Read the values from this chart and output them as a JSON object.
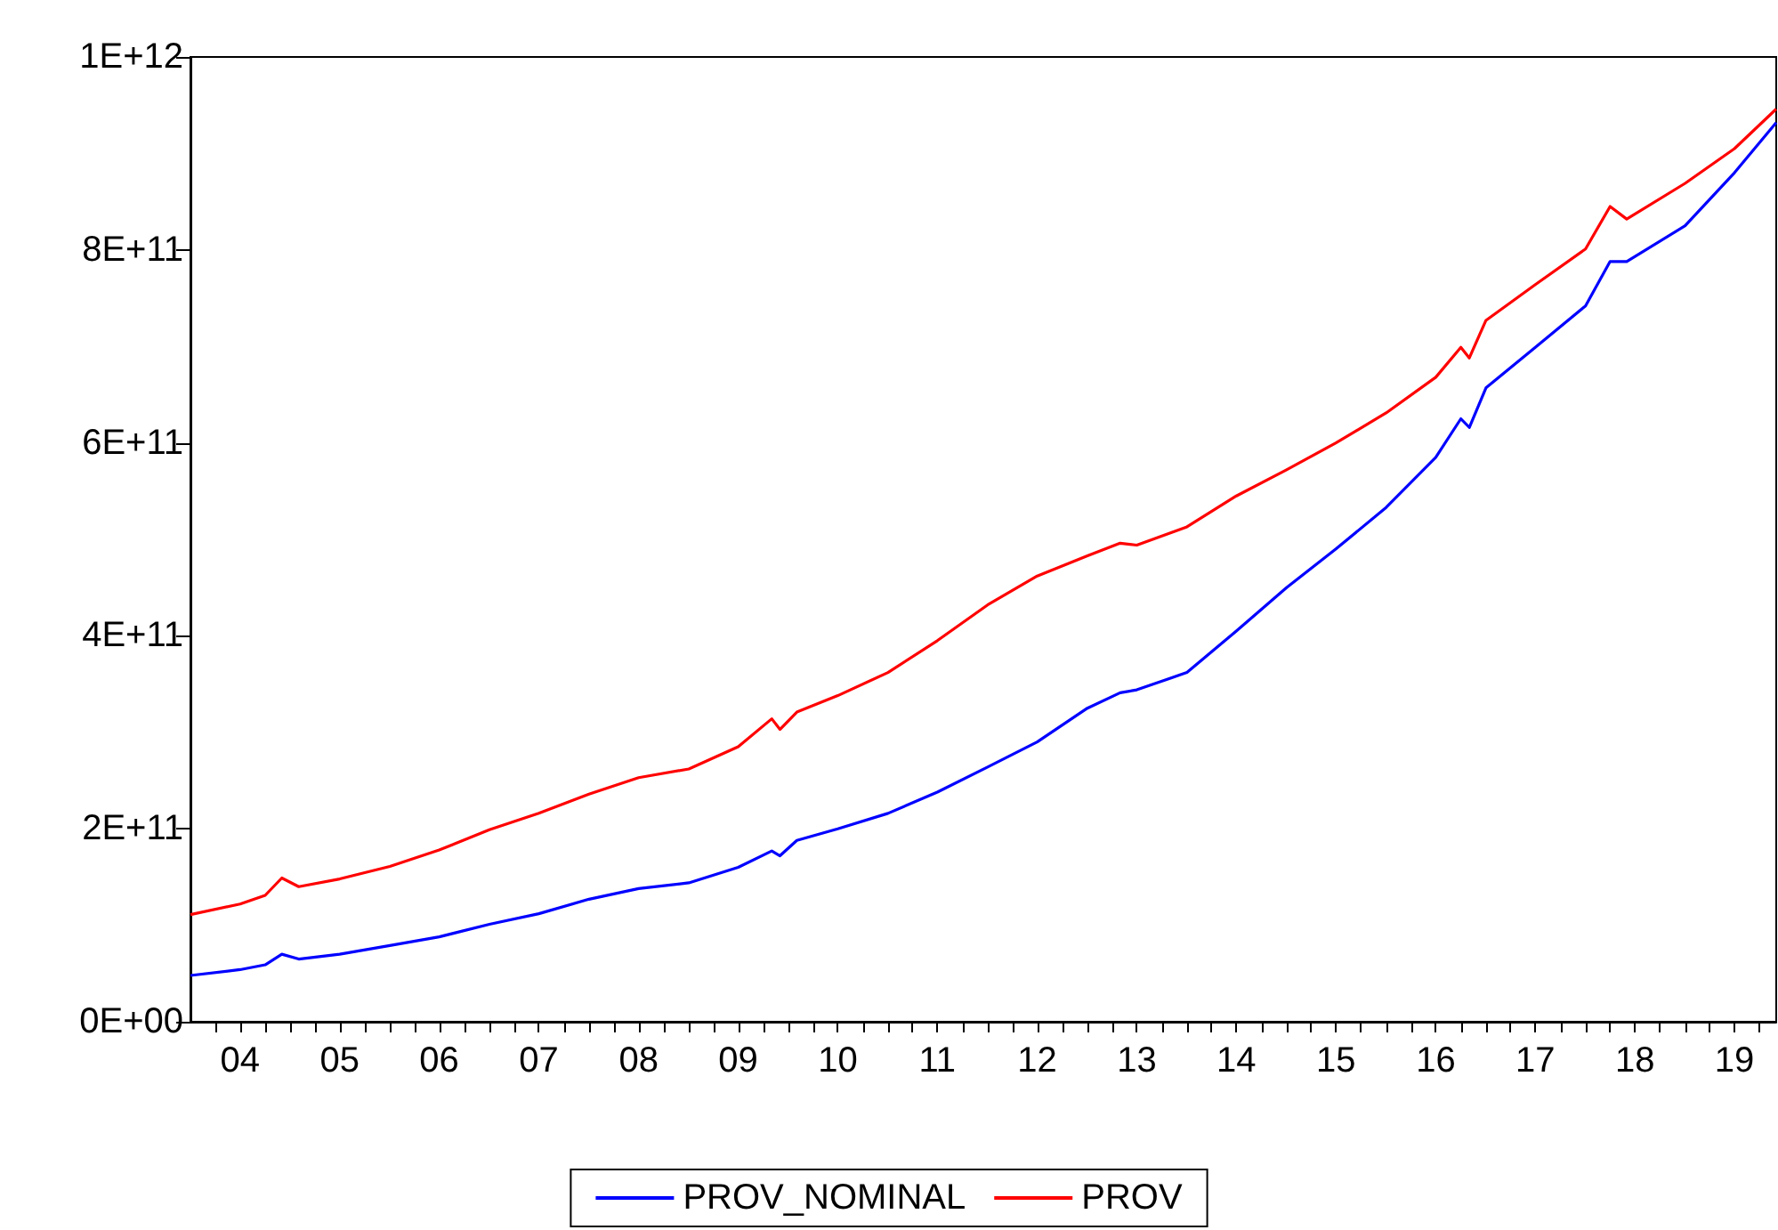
{
  "chart_data": {
    "type": "line",
    "x": [
      "2004-01",
      "2004-07",
      "2004-10",
      "2004-12",
      "2005-02",
      "2005-07",
      "2006-01",
      "2006-07",
      "2007-01",
      "2007-07",
      "2008-01",
      "2008-07",
      "2009-01",
      "2009-07",
      "2009-11",
      "2009-12",
      "2010-02",
      "2010-07",
      "2011-01",
      "2011-07",
      "2012-01",
      "2012-07",
      "2013-01",
      "2013-05",
      "2013-07",
      "2014-01",
      "2014-07",
      "2015-01",
      "2015-07",
      "2016-01",
      "2016-07",
      "2016-10",
      "2016-11",
      "2017-01",
      "2017-07",
      "2018-01",
      "2018-04",
      "2018-06",
      "2019-01",
      "2019-07",
      "2019-12"
    ],
    "series": [
      {
        "name": "PROV_NOMINAL",
        "color": "#0000ff",
        "values": [
          48000000000,
          54000000000,
          59000000000,
          70000000000,
          65000000000,
          70000000000,
          79000000000,
          88000000000,
          101000000000,
          112000000000,
          127000000000,
          138000000000,
          144000000000,
          160000000000,
          177000000000,
          172000000000,
          188000000000,
          200000000000,
          216000000000,
          238000000000,
          264000000000,
          290000000000,
          325000000000,
          341000000000,
          344000000000,
          362000000000,
          405000000000,
          450000000000,
          490000000000,
          533000000000,
          585000000000,
          625000000000,
          616000000000,
          657000000000,
          699000000000,
          742000000000,
          788000000000,
          788000000000,
          825000000000,
          880000000000,
          932000000000
        ]
      },
      {
        "name": "PROV",
        "color": "#ff0000",
        "values": [
          111000000000,
          122000000000,
          131000000000,
          149000000000,
          140000000000,
          148000000000,
          161000000000,
          178000000000,
          199000000000,
          216000000000,
          236000000000,
          253000000000,
          262000000000,
          285000000000,
          314000000000,
          303000000000,
          321000000000,
          338000000000,
          362000000000,
          395000000000,
          432000000000,
          462000000000,
          483000000000,
          496000000000,
          494000000000,
          513000000000,
          545000000000,
          572000000000,
          600000000000,
          631000000000,
          668000000000,
          699000000000,
          688000000000,
          727000000000,
          764000000000,
          801000000000,
          845000000000,
          832000000000,
          869000000000,
          905000000000,
          946000000000
        ]
      }
    ],
    "xlim": [
      "2004-01",
      "2019-12"
    ],
    "xticks": [
      {
        "value": "2004-04",
        "label": null
      },
      {
        "value": "2004-07",
        "label": "04"
      },
      {
        "value": "2004-10",
        "label": null
      },
      {
        "value": "2005-01",
        "label": null
      },
      {
        "value": "2005-04",
        "label": null
      },
      {
        "value": "2005-07",
        "label": "05"
      },
      {
        "value": "2005-10",
        "label": null
      },
      {
        "value": "2006-01",
        "label": null
      },
      {
        "value": "2006-04",
        "label": null
      },
      {
        "value": "2006-07",
        "label": "06"
      },
      {
        "value": "2006-10",
        "label": null
      },
      {
        "value": "2007-01",
        "label": null
      },
      {
        "value": "2007-04",
        "label": null
      },
      {
        "value": "2007-07",
        "label": "07"
      },
      {
        "value": "2007-10",
        "label": null
      },
      {
        "value": "2008-01",
        "label": null
      },
      {
        "value": "2008-04",
        "label": null
      },
      {
        "value": "2008-07",
        "label": "08"
      },
      {
        "value": "2008-10",
        "label": null
      },
      {
        "value": "2009-01",
        "label": null
      },
      {
        "value": "2009-04",
        "label": null
      },
      {
        "value": "2009-07",
        "label": "09"
      },
      {
        "value": "2009-10",
        "label": null
      },
      {
        "value": "2010-01",
        "label": null
      },
      {
        "value": "2010-04",
        "label": null
      },
      {
        "value": "2010-07",
        "label": "10"
      },
      {
        "value": "2010-10",
        "label": null
      },
      {
        "value": "2011-01",
        "label": null
      },
      {
        "value": "2011-04",
        "label": null
      },
      {
        "value": "2011-07",
        "label": "11"
      },
      {
        "value": "2011-10",
        "label": null
      },
      {
        "value": "2012-01",
        "label": null
      },
      {
        "value": "2012-04",
        "label": null
      },
      {
        "value": "2012-07",
        "label": "12"
      },
      {
        "value": "2012-10",
        "label": null
      },
      {
        "value": "2013-01",
        "label": null
      },
      {
        "value": "2013-04",
        "label": null
      },
      {
        "value": "2013-07",
        "label": "13"
      },
      {
        "value": "2013-10",
        "label": null
      },
      {
        "value": "2014-01",
        "label": null
      },
      {
        "value": "2014-04",
        "label": null
      },
      {
        "value": "2014-07",
        "label": "14"
      },
      {
        "value": "2014-10",
        "label": null
      },
      {
        "value": "2015-01",
        "label": null
      },
      {
        "value": "2015-04",
        "label": null
      },
      {
        "value": "2015-07",
        "label": "15"
      },
      {
        "value": "2015-10",
        "label": null
      },
      {
        "value": "2016-01",
        "label": null
      },
      {
        "value": "2016-04",
        "label": null
      },
      {
        "value": "2016-07",
        "label": "16"
      },
      {
        "value": "2016-10",
        "label": null
      },
      {
        "value": "2017-01",
        "label": null
      },
      {
        "value": "2017-04",
        "label": null
      },
      {
        "value": "2017-07",
        "label": "17"
      },
      {
        "value": "2017-10",
        "label": null
      },
      {
        "value": "2018-01",
        "label": null
      },
      {
        "value": "2018-04",
        "label": null
      },
      {
        "value": "2018-07",
        "label": "18"
      },
      {
        "value": "2018-10",
        "label": null
      },
      {
        "value": "2019-01",
        "label": null
      },
      {
        "value": "2019-04",
        "label": null
      },
      {
        "value": "2019-07",
        "label": "19"
      },
      {
        "value": "2019-10",
        "label": null
      }
    ],
    "ylim": [
      0,
      1000000000000
    ],
    "yticks": [
      {
        "value": 0,
        "label": "0E+00"
      },
      {
        "value": 200000000000,
        "label": "2E+11"
      },
      {
        "value": 400000000000,
        "label": "4E+11"
      },
      {
        "value": 600000000000,
        "label": "6E+11"
      },
      {
        "value": 800000000000,
        "label": "8E+11"
      },
      {
        "value": 1000000000000,
        "label": "1E+12"
      }
    ],
    "grid": false,
    "legend": "bottom"
  }
}
